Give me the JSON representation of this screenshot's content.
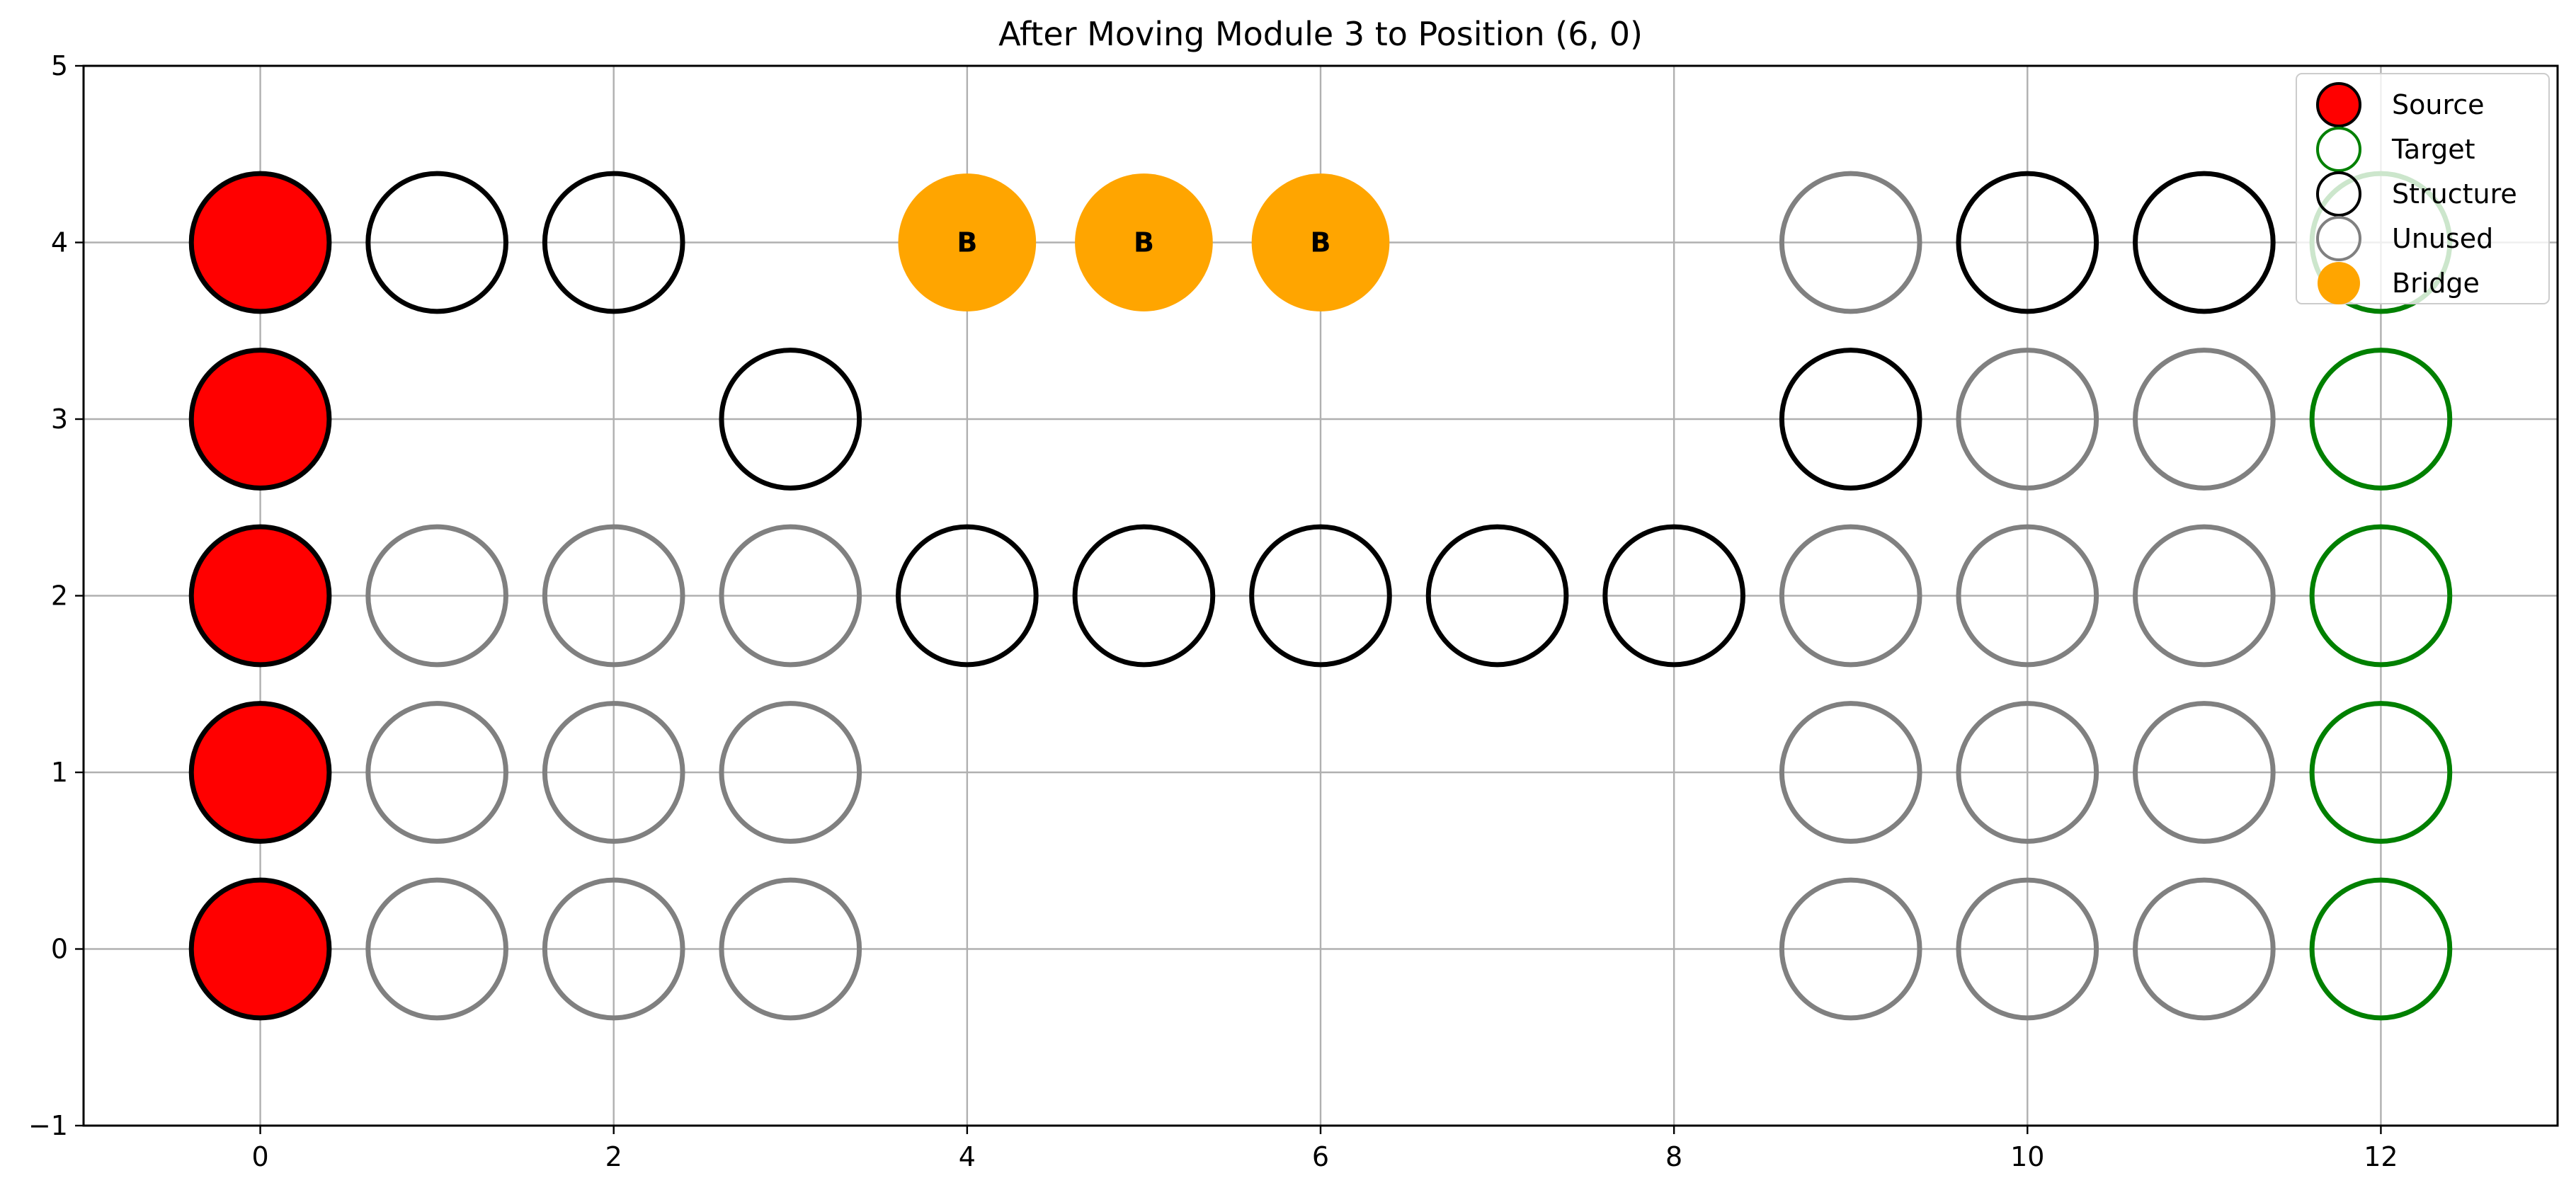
{
  "chart_data": {
    "type": "scatter",
    "title": "After Moving Module 3 to Position (6, 0)",
    "xlabel": "",
    "ylabel": "",
    "xlim": [
      -1,
      13
    ],
    "ylim": [
      -1,
      5
    ],
    "x_ticks": [
      0,
      2,
      4,
      6,
      8,
      10,
      12
    ],
    "y_ticks": [
      -1,
      0,
      1,
      2,
      3,
      4,
      5
    ],
    "grid": true,
    "legend_position": "top-right",
    "series": [
      {
        "name": "Source",
        "style": "filled",
        "fill": "#ff0000",
        "stroke": "#000000",
        "points": [
          [
            0,
            0
          ],
          [
            0,
            1
          ],
          [
            0,
            2
          ],
          [
            0,
            3
          ],
          [
            0,
            4
          ]
        ]
      },
      {
        "name": "Target",
        "style": "outline",
        "fill": "none",
        "stroke": "#008000",
        "points": [
          [
            12,
            0
          ],
          [
            12,
            1
          ],
          [
            12,
            2
          ],
          [
            12,
            3
          ],
          [
            12,
            4
          ]
        ]
      },
      {
        "name": "Structure",
        "style": "outline",
        "fill": "none",
        "stroke": "#000000",
        "points": [
          [
            1,
            4
          ],
          [
            2,
            4
          ],
          [
            3,
            3
          ],
          [
            4,
            2
          ],
          [
            5,
            2
          ],
          [
            6,
            2
          ],
          [
            7,
            2
          ],
          [
            8,
            2
          ],
          [
            9,
            3
          ],
          [
            10,
            4
          ],
          [
            11,
            4
          ]
        ]
      },
      {
        "name": "Unused",
        "style": "outline",
        "fill": "none",
        "stroke": "#808080",
        "points": [
          [
            1,
            0
          ],
          [
            2,
            0
          ],
          [
            3,
            0
          ],
          [
            9,
            0
          ],
          [
            10,
            0
          ],
          [
            11,
            0
          ],
          [
            1,
            1
          ],
          [
            2,
            1
          ],
          [
            3,
            1
          ],
          [
            9,
            1
          ],
          [
            10,
            1
          ],
          [
            11,
            1
          ],
          [
            1,
            2
          ],
          [
            2,
            2
          ],
          [
            3,
            2
          ],
          [
            9,
            2
          ],
          [
            10,
            2
          ],
          [
            11,
            2
          ],
          [
            10,
            3
          ],
          [
            11,
            3
          ],
          [
            9,
            4
          ]
        ]
      },
      {
        "name": "Bridge",
        "style": "filled",
        "fill": "#ffa500",
        "stroke": "none",
        "label": "B",
        "points": [
          [
            4,
            4
          ],
          [
            5,
            4
          ],
          [
            6,
            4
          ]
        ]
      }
    ]
  }
}
